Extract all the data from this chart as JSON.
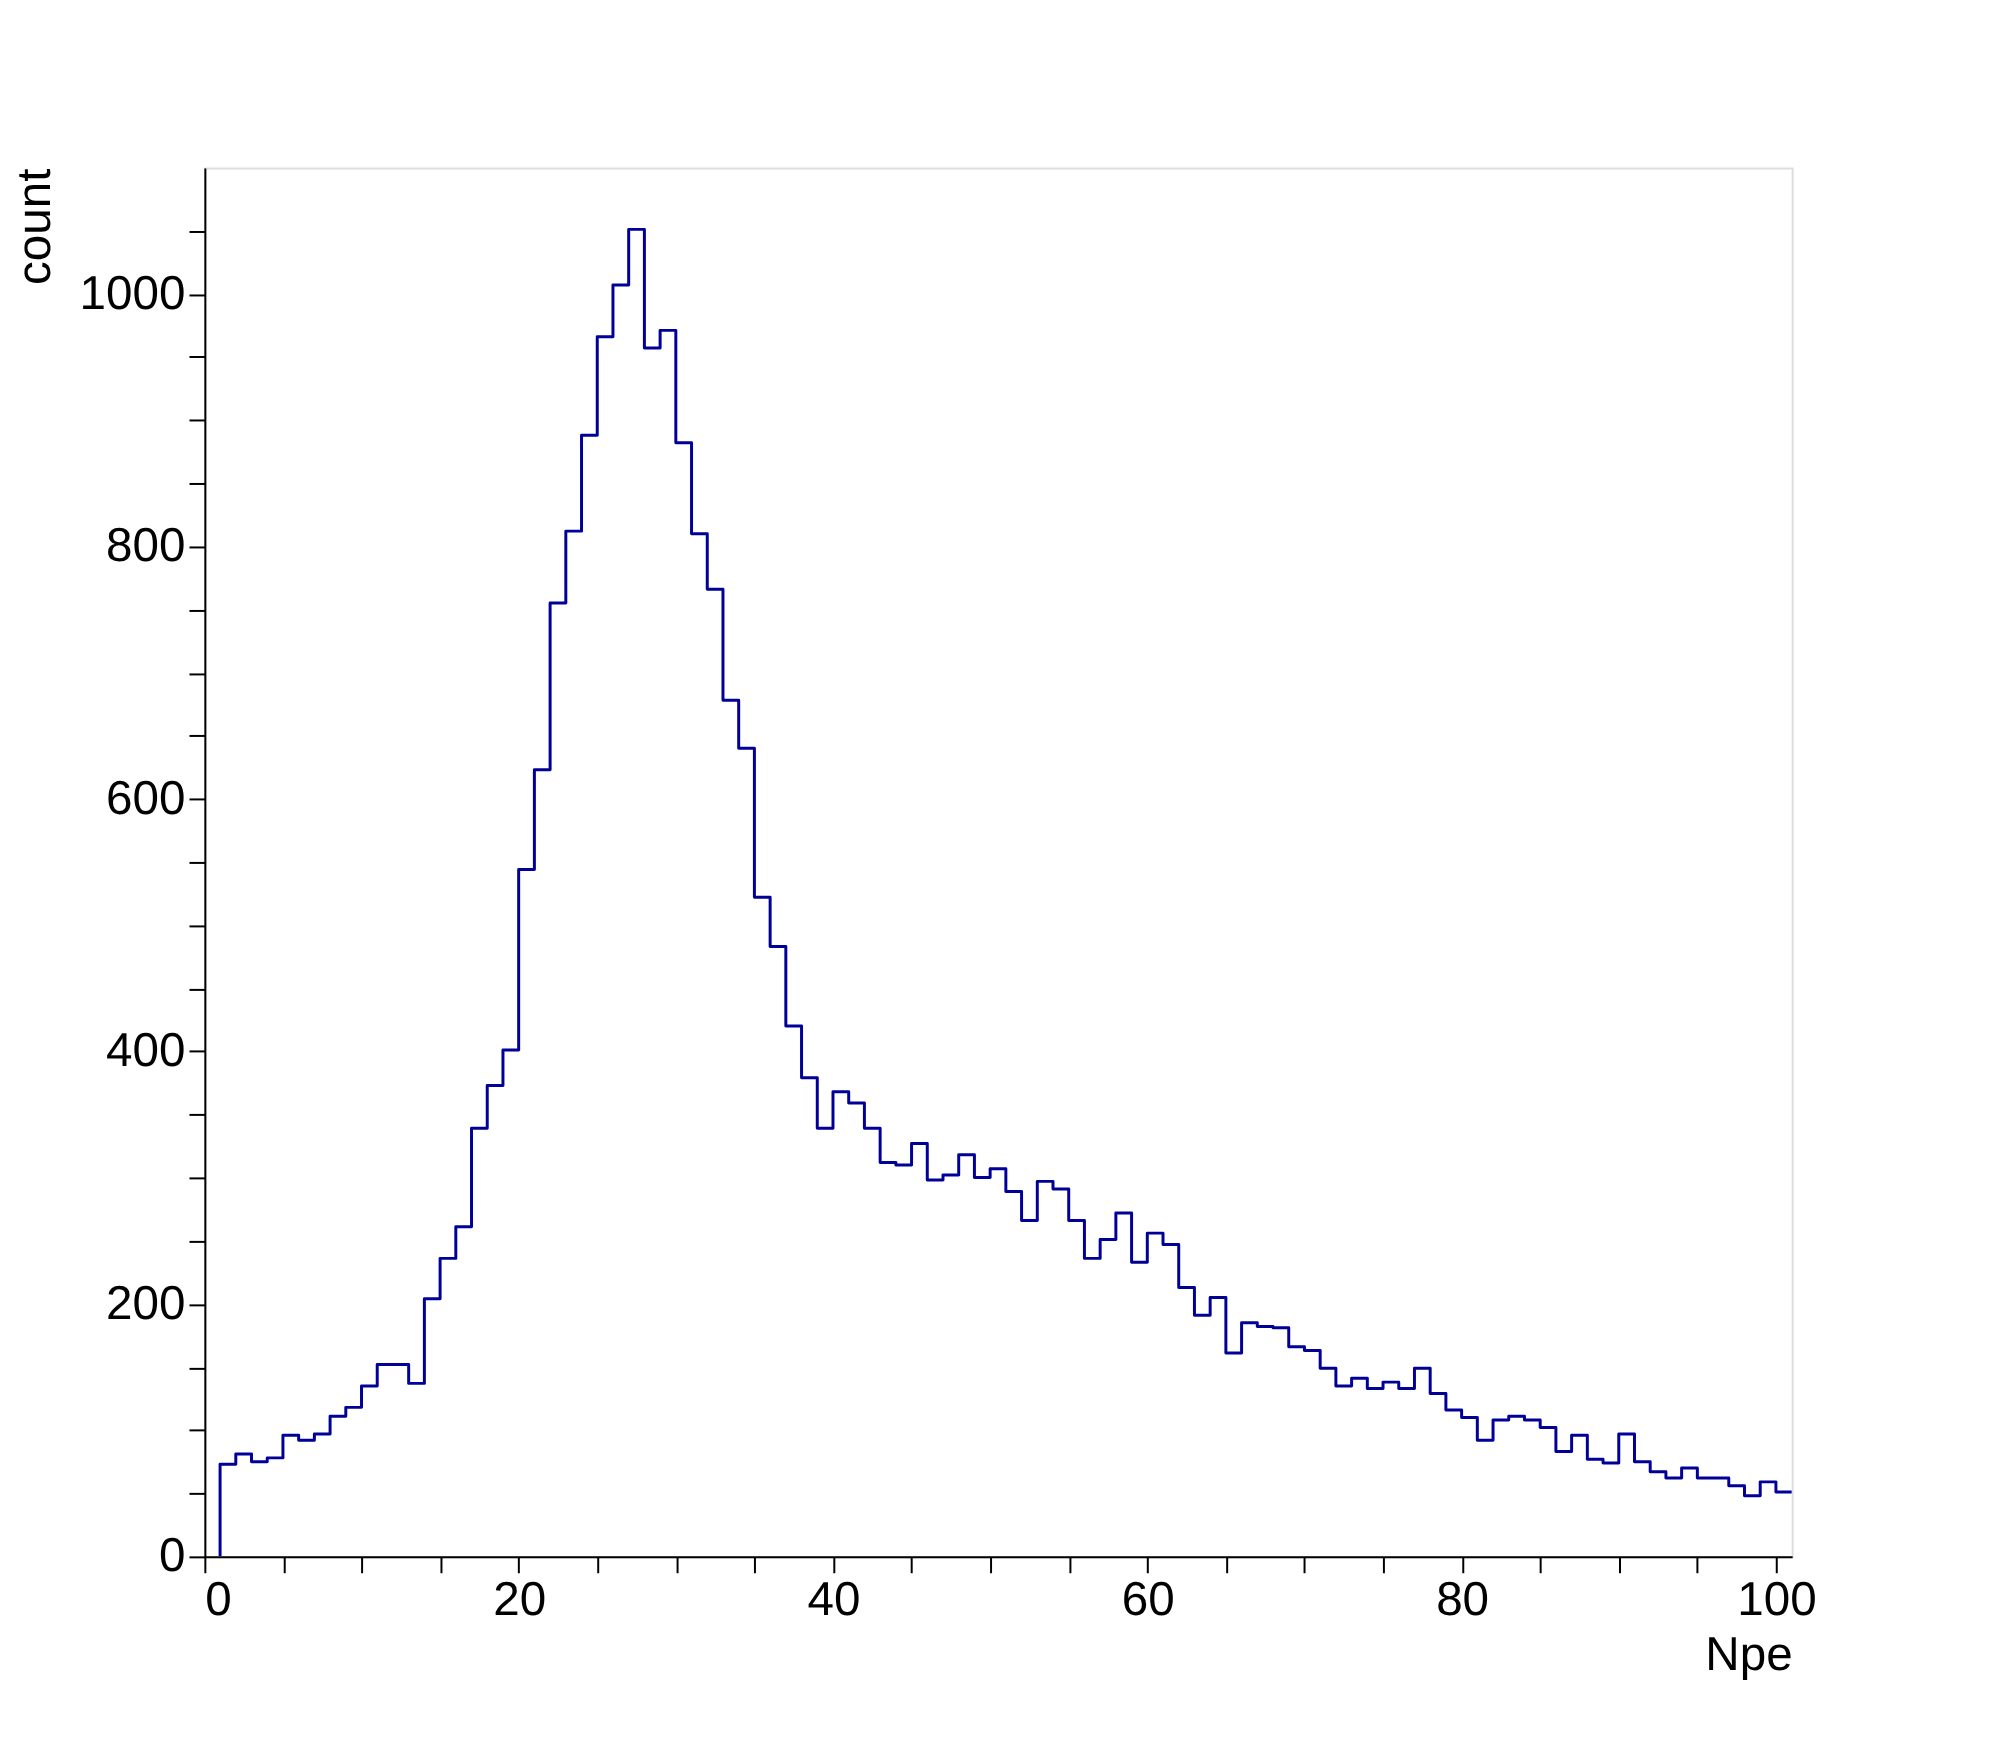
{
  "chart_data": {
    "type": "histogram",
    "xlabel": "Npe",
    "ylabel": "count",
    "color": "#000099",
    "bins": [
      1,
      2,
      3,
      4,
      5,
      6,
      7,
      8,
      9,
      10,
      11,
      12,
      13,
      14,
      15,
      16,
      17,
      18,
      19,
      20,
      21,
      22,
      23,
      24,
      25,
      26,
      27,
      28,
      29,
      30,
      31,
      32,
      33,
      34,
      35,
      36,
      37,
      38,
      39,
      40,
      41,
      42,
      43,
      44,
      45,
      46,
      47,
      48,
      49,
      50,
      51,
      52,
      53,
      54,
      55,
      56,
      57,
      58,
      59,
      60,
      61,
      62,
      63,
      64,
      65,
      66,
      67,
      68,
      69,
      70,
      71,
      72,
      73,
      74,
      75,
      76,
      77,
      78,
      79,
      80,
      81,
      82,
      83,
      84,
      85,
      86,
      87,
      88,
      89,
      90,
      91,
      92,
      93,
      94,
      95,
      96,
      97,
      98,
      99,
      100,
      101
    ],
    "values": [
      73,
      81,
      75,
      78,
      96,
      92,
      97,
      111,
      118,
      135,
      152,
      152,
      137,
      204,
      236,
      261,
      339,
      373,
      401,
      544,
      623,
      755,
      812,
      888,
      966,
      1007,
      1051,
      957,
      971,
      882,
      810,
      766,
      678,
      640,
      522,
      483,
      420,
      379,
      339,
      368,
      359,
      339,
      312,
      310,
      327,
      298,
      302,
      318,
      300,
      307,
      289,
      266,
      297,
      291,
      266,
      236,
      251,
      272,
      233,
      256,
      247,
      213,
      191,
      205,
      161,
      185,
      182,
      181,
      166,
      163,
      149,
      135,
      141,
      133,
      138,
      133,
      149,
      129,
      116,
      110,
      92,
      108,
      111,
      108,
      102,
      83,
      96,
      77,
      74,
      97,
      75,
      67,
      62,
      70,
      62,
      62,
      56,
      48,
      59,
      51
    ],
    "xlim": [
      0,
      101
    ],
    "xticks": [
      0,
      {
        "value": 5,
        "label": null
      },
      {
        "value": 10,
        "label": null
      },
      {
        "value": 15,
        "label": null
      },
      20,
      {
        "value": 25,
        "label": null
      },
      {
        "value": 30,
        "label": null
      },
      {
        "value": 35,
        "label": null
      },
      40,
      {
        "value": 45,
        "label": null
      },
      {
        "value": 50,
        "label": null
      },
      {
        "value": 55,
        "label": null
      },
      60,
      {
        "value": 65,
        "label": null
      },
      {
        "value": 70,
        "label": null
      },
      {
        "value": 75,
        "label": null
      },
      80,
      {
        "value": 85,
        "label": null
      },
      {
        "value": 90,
        "label": null
      },
      {
        "value": 95,
        "label": null
      },
      100
    ],
    "ylim": [
      0,
      1100
    ],
    "yticks": [
      0,
      {
        "value": 50,
        "label": null
      },
      {
        "value": 100,
        "label": null
      },
      {
        "value": 150,
        "label": null
      },
      200,
      {
        "value": 250,
        "label": null
      },
      {
        "value": 300,
        "label": null
      },
      {
        "value": 350,
        "label": null
      },
      400,
      {
        "value": 450,
        "label": null
      },
      {
        "value": 500,
        "label": null
      },
      {
        "value": 550,
        "label": null
      },
      600,
      {
        "value": 650,
        "label": null
      },
      {
        "value": 700,
        "label": null
      },
      {
        "value": 750,
        "label": null
      },
      800,
      {
        "value": 850,
        "label": null
      },
      {
        "value": 900,
        "label": null
      },
      {
        "value": 950,
        "label": null
      },
      1000,
      {
        "value": 1050,
        "label": null
      }
    ],
    "grid": false
  }
}
